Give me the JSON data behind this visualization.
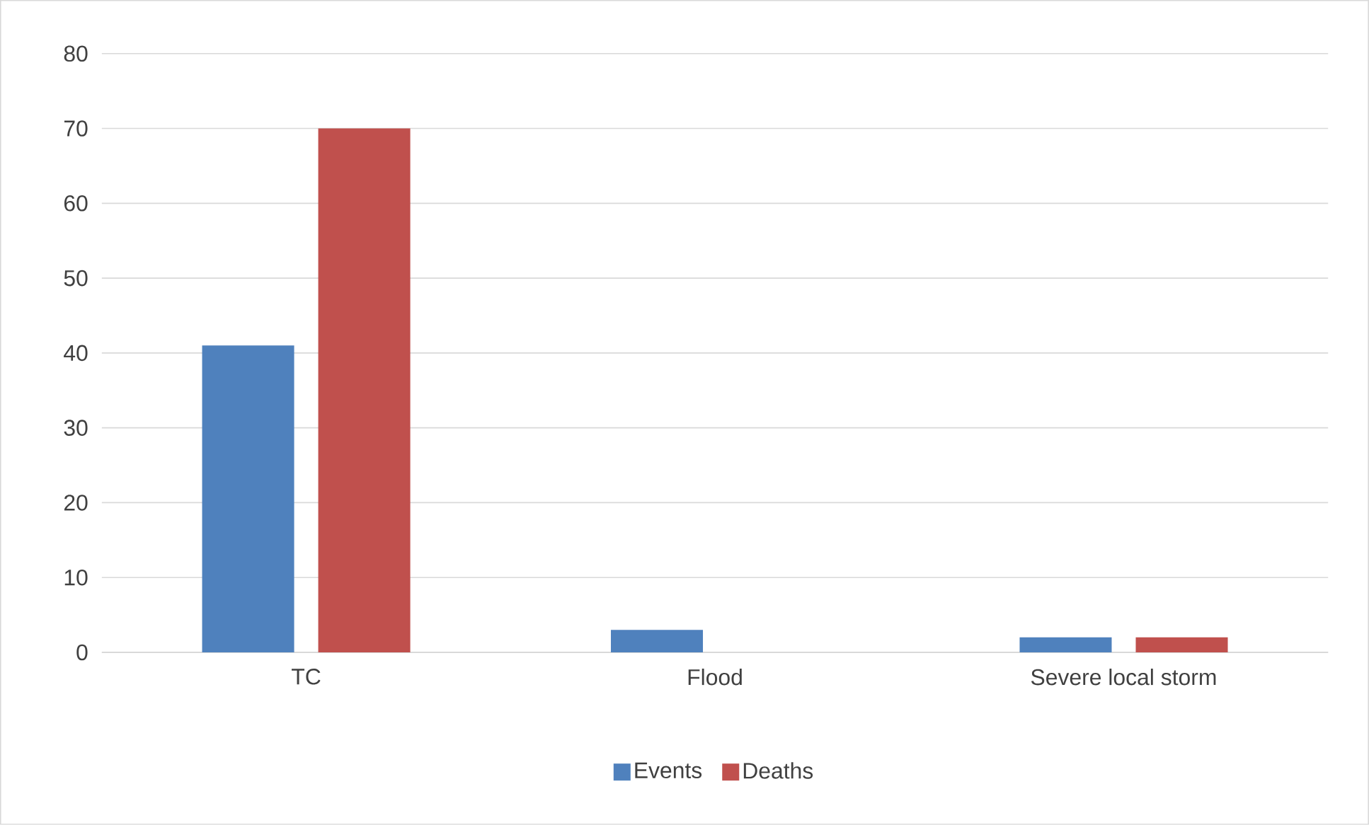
{
  "chart_data": {
    "type": "bar",
    "categories": [
      "TC",
      "Flood",
      "Severe local storm"
    ],
    "series": [
      {
        "name": "Events",
        "color": "#4f81bd",
        "values": [
          41,
          3,
          2
        ]
      },
      {
        "name": "Deaths",
        "color": "#c0504d",
        "values": [
          70,
          0,
          2
        ]
      }
    ],
    "ylim": [
      0,
      80
    ],
    "yticks": [
      0,
      10,
      20,
      30,
      40,
      50,
      60,
      70,
      80
    ],
    "grid": "y",
    "legend": "bottom"
  }
}
